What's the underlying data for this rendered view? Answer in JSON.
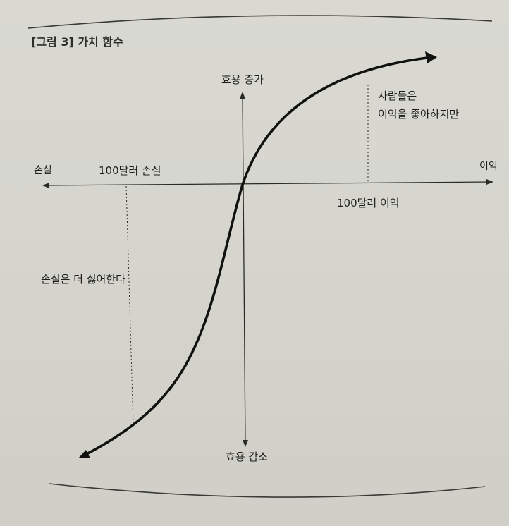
{
  "figure": {
    "title": "[그림 3] 가치 함수"
  },
  "axes": {
    "y_top_label": "효용 증가",
    "y_bottom_label": "효용 감소",
    "x_left_label": "손실",
    "x_right_label": "이익"
  },
  "markers": {
    "loss_marker_label": "100달러 손실",
    "gain_marker_label": "100달러 이익"
  },
  "annotations": {
    "gain_note_line1": "사람들은",
    "gain_note_line2": "이익을 좋아하지만",
    "loss_note": "손실은 더 싫어한다"
  }
}
